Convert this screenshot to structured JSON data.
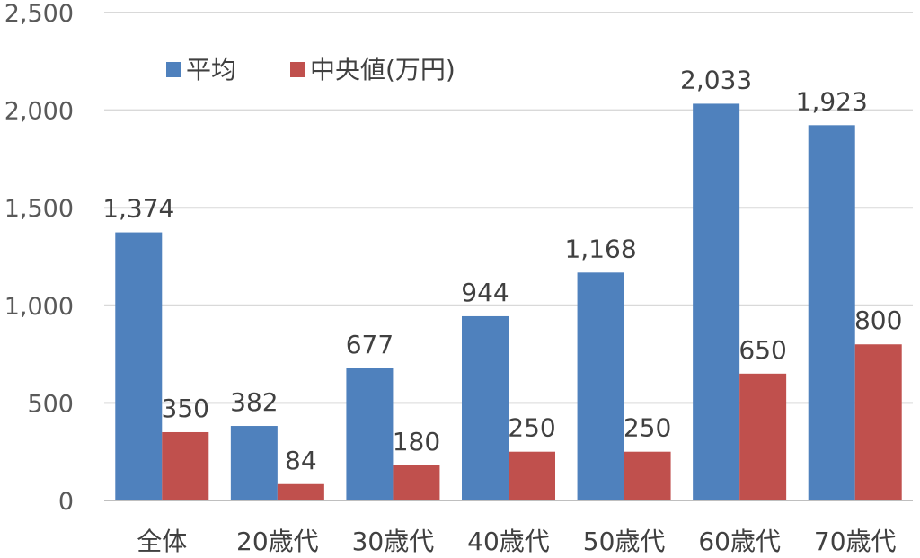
{
  "chart_data": {
    "type": "bar",
    "categories": [
      "全体",
      "20歳代",
      "30歳代",
      "40歳代",
      "50歳代",
      "60歳代",
      "70歳代"
    ],
    "series": [
      {
        "name": "平均",
        "values": [
          1374,
          382,
          677,
          944,
          1168,
          2033,
          1923
        ],
        "color": "#4F81BD"
      },
      {
        "name": "中央値(万円)",
        "values": [
          350,
          84,
          180,
          250,
          250,
          650,
          800
        ],
        "color": "#C0504D"
      }
    ],
    "data_labels": [
      [
        "1,374",
        "382",
        "677",
        "944",
        "1,168",
        "2,033",
        "1,923"
      ],
      [
        "350",
        "84",
        "180",
        "250",
        "250",
        "650",
        "800"
      ]
    ],
    "y_ticks": [
      "0",
      "500",
      "1,000",
      "1,500",
      "2,000",
      "2,500"
    ],
    "ylim": [
      0,
      2500
    ],
    "grid": true,
    "legend": "top-left",
    "title": "",
    "xlabel": "",
    "ylabel": ""
  }
}
